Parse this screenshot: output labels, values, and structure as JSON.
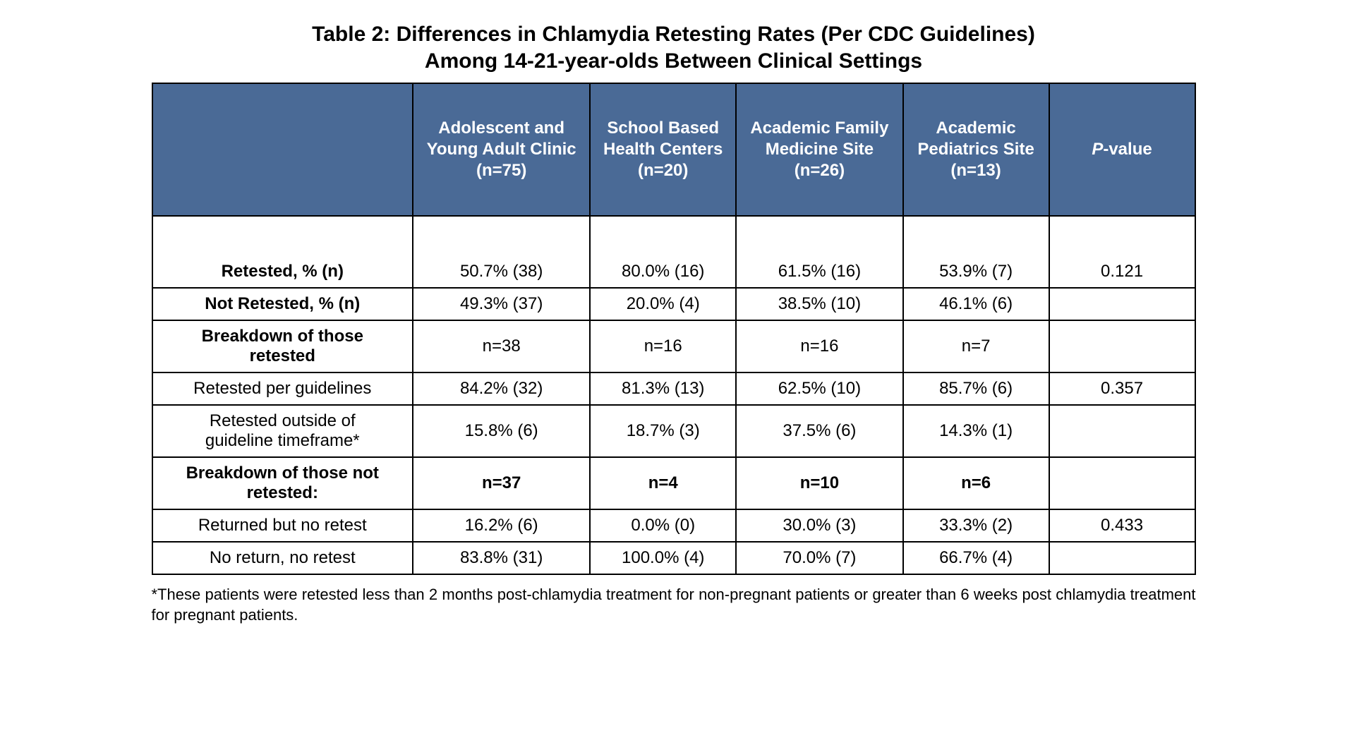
{
  "title_line1": "Table 2: Differences in Chlamydia Retesting Rates (Per CDC Guidelines)",
  "title_line2": "Among 14-21-year-olds Between Clinical Settings",
  "header_bg": "#4a6a96",
  "header_fg": "#ffffff",
  "border_color": "#000000",
  "columns": {
    "blank": "",
    "col1": "Adolescent and Young Adult Clinic (n=75)",
    "col2": "School Based Health Centers (n=20)",
    "col3": "Academic Family Medicine Site (n=26)",
    "col4": "Academic Pediatrics Site (n=13)",
    "pval_pre": "P",
    "pval_post": "-value"
  },
  "rows": [
    {
      "label": "Retested, % (n)",
      "c1": "50.7% (38)",
      "c2": "80.0% (16)",
      "c3": "61.5% (16)",
      "c4": "53.9% (7)",
      "p": "0.121",
      "bold_label": true
    },
    {
      "label": "Not Retested, % (n)",
      "c1": "49.3% (37)",
      "c2": "20.0% (4)",
      "c3": "38.5% (10)",
      "c4": "46.1% (6)",
      "p": "",
      "bold_label": true
    },
    {
      "label": "Breakdown of those retested",
      "c1": "n=38",
      "c2": "n=16",
      "c3": "n=16",
      "c4": "n=7",
      "p": "",
      "bold_label": true
    },
    {
      "label": "Retested per guidelines",
      "c1": "84.2% (32)",
      "c2": "81.3% (13)",
      "c3": "62.5% (10)",
      "c4": "85.7% (6)",
      "p": "0.357",
      "bold_label": false
    },
    {
      "label": "Retested outside of guideline timeframe*",
      "c1": "15.8% (6)",
      "c2": "18.7% (3)",
      "c3": "37.5% (6)",
      "c4": "14.3% (1)",
      "p": "",
      "bold_label": false
    },
    {
      "label": "Breakdown of those not retested:",
      "c1": "n=37",
      "c2": "n=4",
      "c3": "n=10",
      "c4": "n=6",
      "p": "",
      "bold_all": true
    },
    {
      "label": "Returned but no retest",
      "c1": "16.2% (6)",
      "c2": "0.0% (0)",
      "c3": "30.0% (3)",
      "c4": "33.3% (2)",
      "p": "0.433",
      "bold_label": false
    },
    {
      "label": "No return, no retest",
      "c1": "83.8% (31)",
      "c2": "100.0% (4)",
      "c3": "70.0% (7)",
      "c4": "66.7% (4)",
      "p": "",
      "bold_label": false
    }
  ],
  "footnote": "*These patients were retested less than 2 months post-chlamydia treatment for non-pregnant patients or greater than 6 weeks post chlamydia treatment for pregnant patients."
}
